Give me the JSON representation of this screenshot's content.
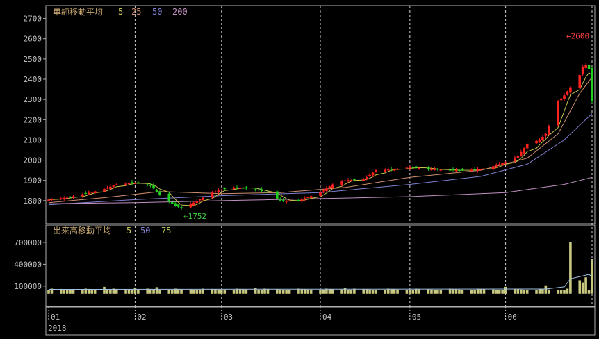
{
  "chart_data": [
    {
      "type": "candlestick",
      "title": "単純移動平均",
      "ma_periods": [
        "5",
        "25",
        "50",
        "200"
      ],
      "ma_colors": [
        "#c8c850",
        "#d09070",
        "#8080d0",
        "#c090c0"
      ],
      "ylim": [
        1700,
        2750
      ],
      "yticks": [
        1800,
        1900,
        2000,
        2100,
        2200,
        2300,
        2400,
        2500,
        2600,
        2700
      ],
      "annotations": [
        {
          "label": "←2600",
          "date": "2018-06-20",
          "value": 2600,
          "color": "#ff4040"
        },
        {
          "label": "←1752",
          "date": "2018-02-16",
          "value": 1752,
          "color": "#40d040"
        }
      ],
      "date_start": "2018-01-04",
      "date_end": "2018-06-29",
      "month_ticks": [
        {
          "label": "01",
          "date": "2018-01-04"
        },
        {
          "label": "02",
          "date": "2018-02-01"
        },
        {
          "label": "03",
          "date": "2018-03-01"
        },
        {
          "label": "04",
          "date": "2018-04-02"
        },
        {
          "label": "05",
          "date": "2018-05-01"
        },
        {
          "label": "06",
          "date": "2018-06-01"
        }
      ],
      "year_label": "2018",
      "close_path": [
        [
          "2018-01-04",
          1805
        ],
        [
          "2018-01-10",
          1815
        ],
        [
          "2018-01-16",
          1835
        ],
        [
          "2018-01-22",
          1858
        ],
        [
          "2018-01-26",
          1880
        ],
        [
          "2018-02-01",
          1888
        ],
        [
          "2018-02-06",
          1875
        ],
        [
          "2018-02-09",
          1830
        ],
        [
          "2018-02-14",
          1775
        ],
        [
          "2018-02-16",
          1765
        ],
        [
          "2018-02-20",
          1790
        ],
        [
          "2018-02-26",
          1840
        ],
        [
          "2018-03-02",
          1860
        ],
        [
          "2018-03-07",
          1865
        ],
        [
          "2018-03-12",
          1855
        ],
        [
          "2018-03-16",
          1840
        ],
        [
          "2018-03-20",
          1800
        ],
        [
          "2018-03-26",
          1800
        ],
        [
          "2018-04-02",
          1840
        ],
        [
          "2018-04-06",
          1880
        ],
        [
          "2018-04-10",
          1900
        ],
        [
          "2018-04-16",
          1905
        ],
        [
          "2018-04-20",
          1950
        ],
        [
          "2018-04-26",
          1955
        ],
        [
          "2018-05-01",
          1965
        ],
        [
          "2018-05-08",
          1955
        ],
        [
          "2018-05-14",
          1950
        ],
        [
          "2018-05-18",
          1950
        ],
        [
          "2018-05-24",
          1955
        ],
        [
          "2018-05-28",
          1970
        ],
        [
          "2018-06-01",
          1990
        ],
        [
          "2018-06-05",
          2020
        ],
        [
          "2018-06-08",
          2080
        ],
        [
          "2018-06-12",
          2100
        ],
        [
          "2018-06-14",
          2130
        ],
        [
          "2018-06-18",
          2290
        ],
        [
          "2018-06-20",
          2320
        ],
        [
          "2018-06-22",
          2360
        ],
        [
          "2018-06-25",
          2420
        ],
        [
          "2018-06-26",
          2460
        ],
        [
          "2018-06-27",
          2470
        ],
        [
          "2018-06-28",
          2450
        ],
        [
          "2018-06-29",
          2290
        ]
      ],
      "series": [
        {
          "name": "25",
          "color": "#d09070",
          "points": [
            [
              "2018-01-04",
              1790
            ],
            [
              "2018-01-22",
              1815
            ],
            [
              "2018-02-09",
              1845
            ],
            [
              "2018-03-01",
              1835
            ],
            [
              "2018-03-20",
              1840
            ],
            [
              "2018-04-10",
              1865
            ],
            [
              "2018-05-01",
              1915
            ],
            [
              "2018-05-24",
              1950
            ],
            [
              "2018-06-08",
              2010
            ],
            [
              "2018-06-18",
              2130
            ],
            [
              "2018-06-25",
              2330
            ],
            [
              "2018-06-29",
              2410
            ]
          ]
        },
        {
          "name": "50",
          "color": "#8080d0",
          "points": [
            [
              "2018-01-04",
              1780
            ],
            [
              "2018-02-01",
              1805
            ],
            [
              "2018-03-01",
              1825
            ],
            [
              "2018-04-02",
              1840
            ],
            [
              "2018-05-01",
              1880
            ],
            [
              "2018-05-24",
              1920
            ],
            [
              "2018-06-08",
              1980
            ],
            [
              "2018-06-20",
              2100
            ],
            [
              "2018-06-29",
              2230
            ]
          ]
        },
        {
          "name": "200",
          "color": "#c090c0",
          "points": [
            [
              "2018-01-04",
              1785
            ],
            [
              "2018-02-01",
              1790
            ],
            [
              "2018-03-01",
              1800
            ],
            [
              "2018-04-02",
              1810
            ],
            [
              "2018-05-01",
              1820
            ],
            [
              "2018-06-01",
              1840
            ],
            [
              "2018-06-20",
              1880
            ],
            [
              "2018-06-29",
              1915
            ]
          ]
        }
      ]
    },
    {
      "type": "bar",
      "title": "出来高移動平均",
      "ma_periods": [
        "5",
        "50",
        "75"
      ],
      "ma_colors": [
        "#c8c850",
        "#8080d0",
        "#b0c050"
      ],
      "ylim": [
        -150000,
        900000
      ],
      "yticks": [
        100000,
        400000,
        700000
      ],
      "ytick_labels": [
        "100000",
        "400000",
        "700000"
      ],
      "baseline_volume": 55000,
      "spikes": [
        [
          "2018-01-22",
          90000
        ],
        [
          "2018-02-01",
          80000
        ],
        [
          "2018-02-08",
          85000
        ],
        [
          "2018-03-12",
          70000
        ],
        [
          "2018-04-10",
          70000
        ],
        [
          "2018-06-01",
          90000
        ],
        [
          "2018-06-14",
          110000
        ],
        [
          "2018-06-22",
          700000
        ],
        [
          "2018-06-25",
          180000
        ],
        [
          "2018-06-26",
          150000
        ],
        [
          "2018-06-27",
          220000
        ],
        [
          "2018-06-29",
          470000
        ]
      ],
      "ma_line": [
        [
          "2018-01-04",
          55000
        ],
        [
          "2018-06-14",
          60000
        ],
        [
          "2018-06-20",
          90000
        ],
        [
          "2018-06-22",
          200000
        ],
        [
          "2018-06-26",
          240000
        ],
        [
          "2018-06-28",
          260000
        ],
        [
          "2018-06-29",
          230000
        ]
      ]
    }
  ]
}
